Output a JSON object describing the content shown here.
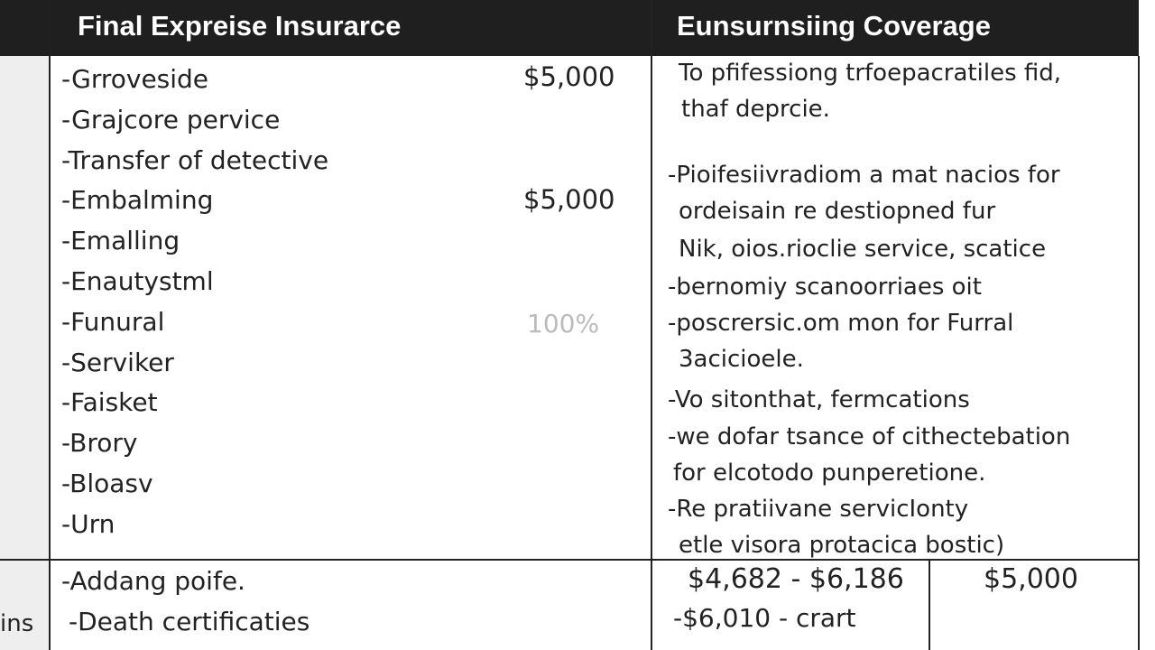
{
  "header": {
    "columns": [
      "Final Expreise Insurarce",
      "Eunsurnsiing Coverage"
    ]
  },
  "table": {
    "rows": [
      {
        "items": [
          "-Grroveside",
          "-Grajcore pervice",
          "-Transfer of detective",
          "-Embalming",
          "-Emalling",
          "-Enautystml",
          "-Funural",
          "-Serviker",
          "-Faisket",
          "-Brory",
          "-Bloasv",
          "-Urn"
        ],
        "amounts": [
          "$5,000",
          "$5,000",
          "100%"
        ],
        "coverage": [
          "To pfifessiong trfoepacratiles fid,",
          "thaf deprcie.",
          "-Pioifesiivradiom a mat nacios for",
          "ordeisain re destiopned fur",
          "Nik, oios.rioclie service, scatice",
          "-bernomiy scanoorriaes oit",
          "-poscrersic.om mon for Furral",
          "3acicioele.",
          "-Vo sitonthat, fermcations",
          "-we dofar tsance of cithectebation",
          "for elcotodo punperetione.",
          "-Re pratiivane servicIonty",
          "etle visora protacica bostic)"
        ]
      },
      {
        "label": "ins",
        "items": [
          "-Addang poife.",
          "-Death certificaties"
        ],
        "coverage": [
          "$4,682 - $6,186",
          "-$6,010 - crart"
        ],
        "amount": "$5,000"
      }
    ]
  }
}
